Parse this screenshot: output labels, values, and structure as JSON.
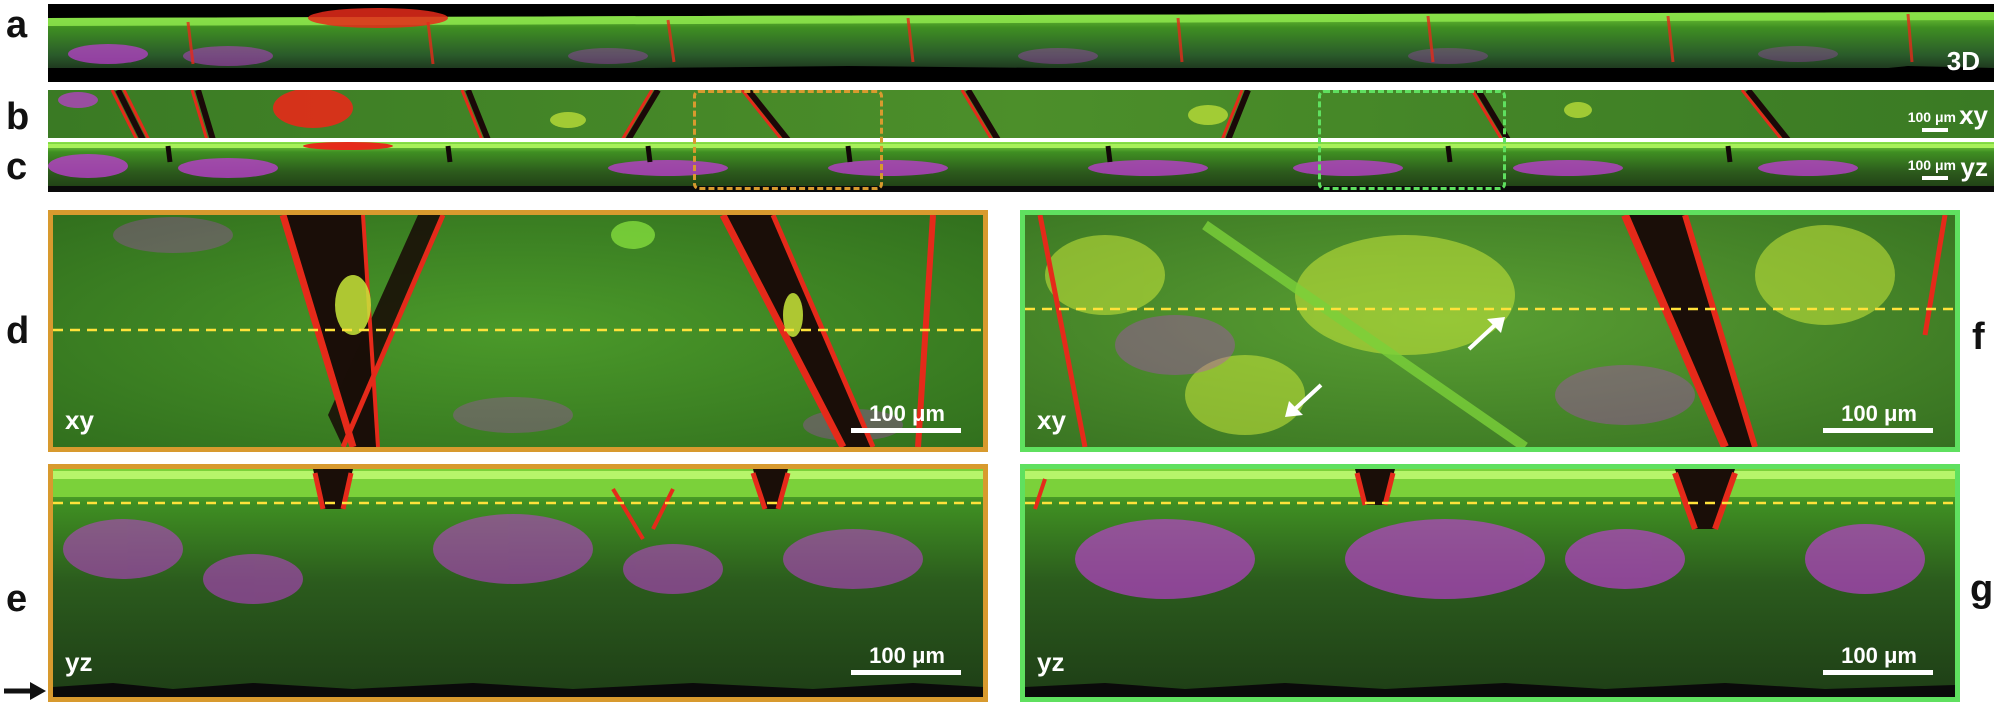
{
  "panel_letters": {
    "a": "a",
    "b": "b",
    "c": "c",
    "d": "d",
    "e": "e",
    "f": "f",
    "g": "g"
  },
  "strip_a": {
    "label": "3D"
  },
  "strip_b": {
    "label": "xy",
    "scalebar": "100 μm"
  },
  "strip_c": {
    "label": "yz",
    "scalebar": "100 μm"
  },
  "panel_d": {
    "label": "xy",
    "scalebar": "100 μm"
  },
  "panel_e": {
    "label": "yz",
    "scalebar": "100 μm"
  },
  "panel_f": {
    "label": "xy",
    "scalebar": "100 μm"
  },
  "panel_g": {
    "label": "yz",
    "scalebar": "100 μm"
  },
  "colors": {
    "tissue_green": "#3f8f22",
    "vessel_red": "#e52a1a",
    "signal_magenta": "#c23cd6",
    "roi_orange": "#d89a2e",
    "roi_green": "#5fe05f",
    "guide_yellow": "#ffe23a",
    "scale_white": "#ffffff"
  },
  "icons": {
    "pointer": "arrow-right-icon",
    "cell_markers": "white-arrow-icon"
  }
}
